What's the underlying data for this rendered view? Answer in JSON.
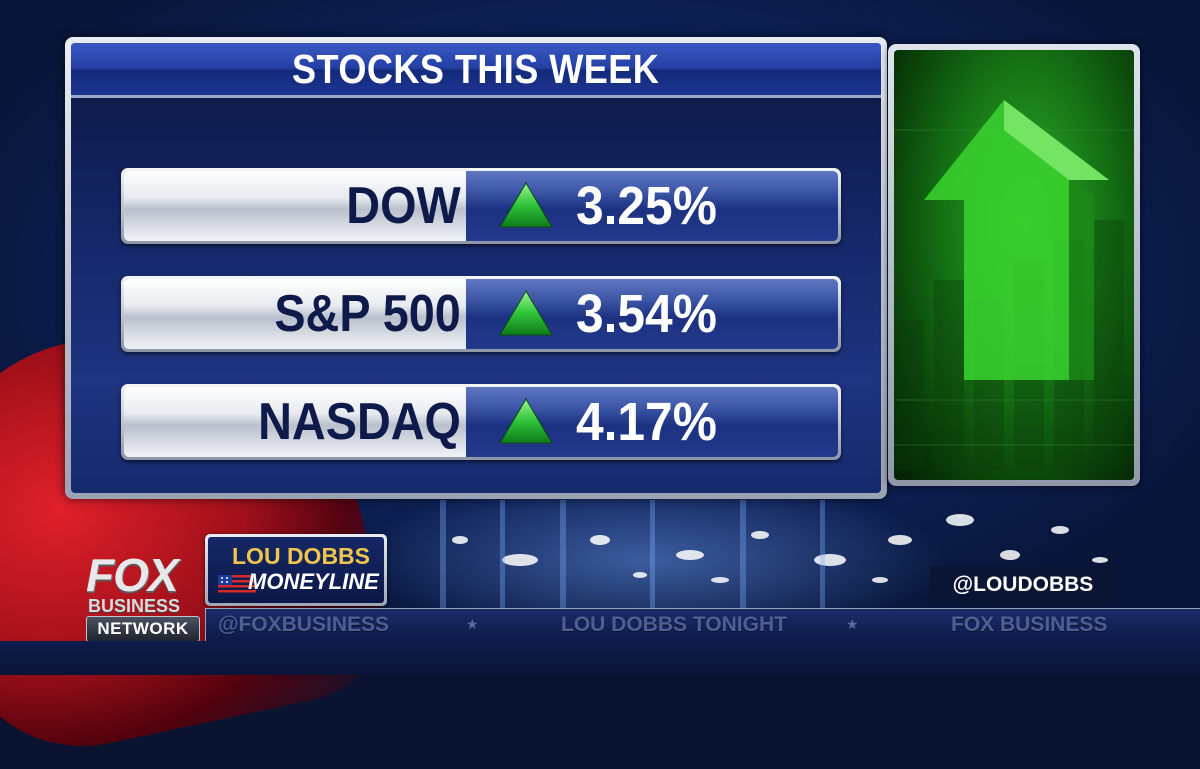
{
  "panel": {
    "title": "STOCKS THIS WEEK",
    "rows": [
      {
        "label": "DOW",
        "direction": "up",
        "change": "3.25%"
      },
      {
        "label": "S&P 500",
        "direction": "up",
        "change": "3.54%"
      },
      {
        "label": "NASDAQ",
        "direction": "up",
        "change": "4.17%"
      }
    ]
  },
  "lower_third": {
    "network_logo": {
      "fox": "FOX",
      "business": "BUSINESS",
      "network": "NETWORK"
    },
    "show": {
      "line1": "LOU DOBBS",
      "line2": "MONEYLINE"
    },
    "handle": "@LOUDOBBS"
  },
  "ticker": {
    "items": [
      "@FOXBUSINESS",
      "LOU DOBBS TONIGHT",
      "FOX BUSINESS"
    ]
  },
  "colors": {
    "title_bar": "#2440a4",
    "label_text": "#0d1a4a",
    "up_arrow": "#2fc43a",
    "show_name": "#f1c44b"
  }
}
